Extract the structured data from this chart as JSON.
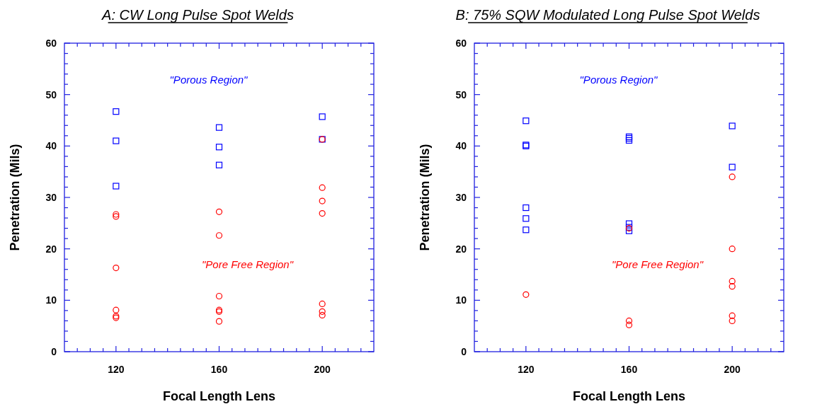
{
  "chart_data": [
    {
      "type": "scatter",
      "title": "A: CW Long Pulse Spot Welds",
      "xlabel": "Focal Length Lens",
      "ylabel": "Penetration (Mils)",
      "annotations": [
        "\"Porous Region\"",
        "\"Pore Free Region\""
      ],
      "series": [
        {
          "color": "#0000ff",
          "marker": "square",
          "x": [
            120,
            120,
            120,
            160,
            160,
            160,
            200,
            200
          ],
          "values": [
            46.7,
            41.0,
            32.2,
            43.6,
            39.8,
            36.3,
            45.7,
            41.3
          ]
        },
        {
          "color": "#ff0000",
          "marker": "circle",
          "x": [
            120,
            120,
            120,
            120,
            120,
            120,
            160,
            160,
            160,
            160,
            160,
            160,
            200,
            200,
            200,
            200,
            200,
            200,
            200
          ],
          "values": [
            26.7,
            26.3,
            16.3,
            8.1,
            6.9,
            6.6,
            27.2,
            22.6,
            10.8,
            8.1,
            7.8,
            5.9,
            41.3,
            31.9,
            29.3,
            26.9,
            9.3,
            7.8,
            7.1
          ]
        }
      ],
      "xlim": [
        100,
        220
      ],
      "ylim": [
        0,
        60
      ],
      "xticks": [
        {
          "value": 105,
          "label": null
        },
        {
          "value": 110,
          "label": null
        },
        {
          "value": 115,
          "label": null
        },
        120,
        {
          "value": 125,
          "label": null
        },
        {
          "value": 130,
          "label": null
        },
        {
          "value": 135,
          "label": null
        },
        {
          "value": 140,
          "label": null
        },
        {
          "value": 145,
          "label": null
        },
        {
          "value": 150,
          "label": null
        },
        {
          "value": 155,
          "label": null
        },
        160,
        {
          "value": 165,
          "label": null
        },
        {
          "value": 170,
          "label": null
        },
        {
          "value": 175,
          "label": null
        },
        {
          "value": 180,
          "label": null
        },
        {
          "value": 185,
          "label": null
        },
        {
          "value": 190,
          "label": null
        },
        {
          "value": 195,
          "label": null
        },
        200,
        {
          "value": 205,
          "label": null
        },
        {
          "value": 210,
          "label": null
        },
        {
          "value": 215,
          "label": null
        }
      ],
      "yticks": [
        0,
        {
          "value": 2,
          "label": null
        },
        {
          "value": 4,
          "label": null
        },
        {
          "value": 6,
          "label": null
        },
        {
          "value": 8,
          "label": null
        },
        10,
        {
          "value": 12,
          "label": null
        },
        {
          "value": 14,
          "label": null
        },
        {
          "value": 16,
          "label": null
        },
        {
          "value": 18,
          "label": null
        },
        20,
        {
          "value": 22,
          "label": null
        },
        {
          "value": 24,
          "label": null
        },
        {
          "value": 26,
          "label": null
        },
        {
          "value": 28,
          "label": null
        },
        30,
        {
          "value": 32,
          "label": null
        },
        {
          "value": 34,
          "label": null
        },
        {
          "value": 36,
          "label": null
        },
        {
          "value": 38,
          "label": null
        },
        40,
        {
          "value": 42,
          "label": null
        },
        {
          "value": 44,
          "label": null
        },
        {
          "value": 46,
          "label": null
        },
        {
          "value": 48,
          "label": null
        },
        50,
        {
          "value": 52,
          "label": null
        },
        {
          "value": 54,
          "label": null
        },
        {
          "value": 56,
          "label": null
        },
        {
          "value": 58,
          "label": null
        },
        60
      ],
      "grid": false
    },
    {
      "type": "scatter",
      "title": "B: 75% SQW Modulated Long Pulse Spot Welds",
      "xlabel": "Focal Length Lens",
      "ylabel": "Penetration (Mils)",
      "annotations": [
        "\"Porous Region\"",
        "\"Pore Free Region\""
      ],
      "series": [
        {
          "color": "#0000ff",
          "marker": "square",
          "x": [
            120,
            120,
            120,
            120,
            120,
            120,
            160,
            160,
            160,
            160,
            160,
            160,
            200,
            200
          ],
          "values": [
            44.9,
            40.2,
            40.0,
            28.0,
            25.9,
            23.7,
            41.8,
            41.5,
            41.1,
            24.9,
            24.2,
            23.5,
            43.9,
            35.9
          ]
        },
        {
          "color": "#ff0000",
          "marker": "circle",
          "x": [
            120,
            160,
            160,
            160,
            200,
            200,
            200,
            200,
            200,
            200
          ],
          "values": [
            11.1,
            24.0,
            6.0,
            5.2,
            34.0,
            20.0,
            13.7,
            12.7,
            7.0,
            6.0
          ]
        }
      ],
      "xlim": [
        100,
        220
      ],
      "ylim": [
        0,
        60
      ],
      "xticks": [
        {
          "value": 105,
          "label": null
        },
        {
          "value": 110,
          "label": null
        },
        {
          "value": 115,
          "label": null
        },
        120,
        {
          "value": 125,
          "label": null
        },
        {
          "value": 130,
          "label": null
        },
        {
          "value": 135,
          "label": null
        },
        {
          "value": 140,
          "label": null
        },
        {
          "value": 145,
          "label": null
        },
        {
          "value": 150,
          "label": null
        },
        {
          "value": 155,
          "label": null
        },
        160,
        {
          "value": 165,
          "label": null
        },
        {
          "value": 170,
          "label": null
        },
        {
          "value": 175,
          "label": null
        },
        {
          "value": 180,
          "label": null
        },
        {
          "value": 185,
          "label": null
        },
        {
          "value": 190,
          "label": null
        },
        {
          "value": 195,
          "label": null
        },
        200,
        {
          "value": 205,
          "label": null
        },
        {
          "value": 210,
          "label": null
        },
        {
          "value": 215,
          "label": null
        }
      ],
      "yticks": [
        0,
        {
          "value": 2,
          "label": null
        },
        {
          "value": 4,
          "label": null
        },
        {
          "value": 6,
          "label": null
        },
        {
          "value": 8,
          "label": null
        },
        10,
        {
          "value": 12,
          "label": null
        },
        {
          "value": 14,
          "label": null
        },
        {
          "value": 16,
          "label": null
        },
        {
          "value": 18,
          "label": null
        },
        20,
        {
          "value": 22,
          "label": null
        },
        {
          "value": 24,
          "label": null
        },
        {
          "value": 26,
          "label": null
        },
        {
          "value": 28,
          "label": null
        },
        30,
        {
          "value": 32,
          "label": null
        },
        {
          "value": 34,
          "label": null
        },
        {
          "value": 36,
          "label": null
        },
        {
          "value": 38,
          "label": null
        },
        40,
        {
          "value": 42,
          "label": null
        },
        {
          "value": 44,
          "label": null
        },
        {
          "value": 46,
          "label": null
        },
        {
          "value": 48,
          "label": null
        },
        50,
        {
          "value": 52,
          "label": null
        },
        {
          "value": 54,
          "label": null
        },
        {
          "value": 56,
          "label": null
        },
        {
          "value": 58,
          "label": null
        },
        60
      ],
      "grid": false
    }
  ]
}
